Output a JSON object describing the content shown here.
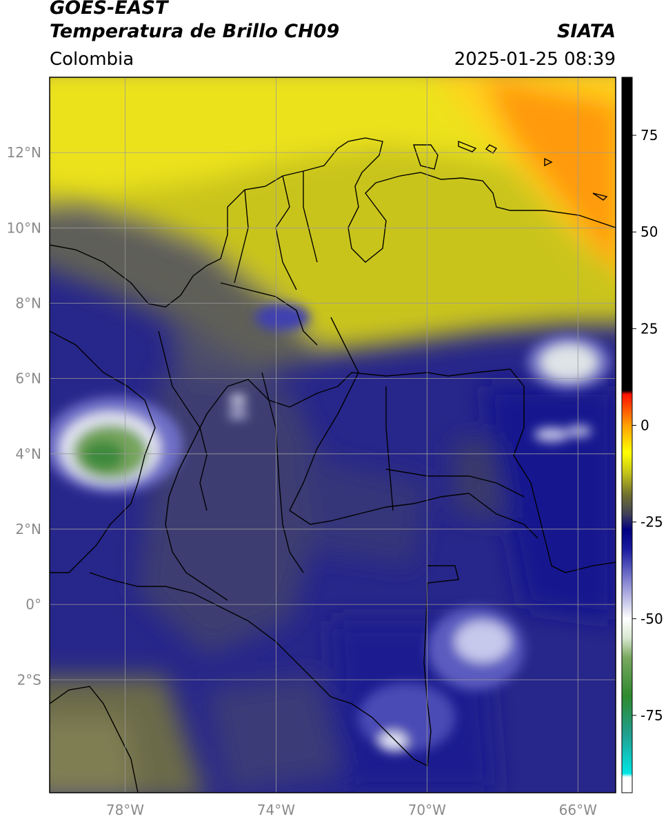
{
  "header": {
    "satellite": "GOES-EAST",
    "product": "Temperatura de Brillo CH09",
    "organization": "SIATA",
    "region": "Colombia",
    "datetime": "2025-01-25 08:39"
  },
  "map": {
    "lon_range": [
      -80,
      -65
    ],
    "lat_range": [
      -5,
      14
    ],
    "lon_ticks": [
      {
        "value": -78,
        "label": "78°W"
      },
      {
        "value": -74,
        "label": "74°W"
      },
      {
        "value": -70,
        "label": "70°W"
      },
      {
        "value": -66,
        "label": "66°W"
      }
    ],
    "lat_ticks": [
      {
        "value": 12,
        "label": "12°N"
      },
      {
        "value": 10,
        "label": "10°N"
      },
      {
        "value": 8,
        "label": "8°N"
      },
      {
        "value": 6,
        "label": "6°N"
      },
      {
        "value": 4,
        "label": "4°N"
      },
      {
        "value": 2,
        "label": "2°N"
      },
      {
        "value": 0,
        "label": "0°"
      },
      {
        "value": -2,
        "label": "2°S"
      }
    ],
    "grid": true
  },
  "colorbar": {
    "range": [
      -95,
      90
    ],
    "ticks": [
      {
        "value": 75,
        "label": "75"
      },
      {
        "value": 50,
        "label": "50"
      },
      {
        "value": 25,
        "label": "25"
      },
      {
        "value": 0,
        "label": "0"
      },
      {
        "value": -25,
        "label": "-25"
      },
      {
        "value": -50,
        "label": "-50"
      },
      {
        "value": -75,
        "label": "-75"
      }
    ],
    "stops": [
      {
        "value": -95,
        "color": "#ffffff"
      },
      {
        "value": -91,
        "color": "#ffffff"
      },
      {
        "value": -90,
        "color": "#00e5e5"
      },
      {
        "value": -80,
        "color": "#20a090"
      },
      {
        "value": -70,
        "color": "#2e8a2e"
      },
      {
        "value": -60,
        "color": "#7aa860"
      },
      {
        "value": -55,
        "color": "#d8e8d0"
      },
      {
        "value": -50,
        "color": "#ffffff"
      },
      {
        "value": -40,
        "color": "#8080d0"
      },
      {
        "value": -32,
        "color": "#1a1aa0"
      },
      {
        "value": -27,
        "color": "#000080"
      },
      {
        "value": -23,
        "color": "#404058"
      },
      {
        "value": -18,
        "color": "#707030"
      },
      {
        "value": -12,
        "color": "#c8c818"
      },
      {
        "value": -7,
        "color": "#ffff00"
      },
      {
        "value": 0,
        "color": "#ffa000"
      },
      {
        "value": 8,
        "color": "#ff1000"
      },
      {
        "value": 9,
        "color": "#000000"
      },
      {
        "value": 90,
        "color": "#000000"
      }
    ]
  }
}
